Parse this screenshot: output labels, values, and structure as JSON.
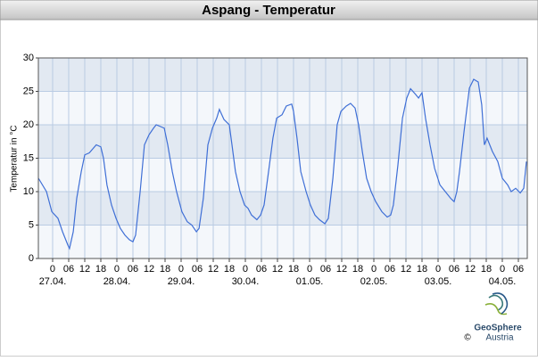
{
  "chart_data": {
    "type": "line",
    "title": "Aspang - Temperatur",
    "ylabel": "Temperatur in °C",
    "color": "#3f6fd6",
    "grid": true,
    "xlim": [
      -5.33,
      177.33
    ],
    "ylim": [
      0,
      30
    ],
    "yticks": [
      0,
      5,
      10,
      15,
      20,
      25,
      30
    ],
    "xticks": [
      {
        "value": 0,
        "label": "0"
      },
      {
        "value": 6,
        "label": "06"
      },
      {
        "value": 12,
        "label": "12"
      },
      {
        "value": 18,
        "label": "18"
      },
      {
        "value": 24,
        "label": "0"
      },
      {
        "value": 30,
        "label": "06"
      },
      {
        "value": 36,
        "label": "12"
      },
      {
        "value": 42,
        "label": "18"
      },
      {
        "value": 48,
        "label": "0"
      },
      {
        "value": 54,
        "label": "06"
      },
      {
        "value": 60,
        "label": "12"
      },
      {
        "value": 66,
        "label": "18"
      },
      {
        "value": 72,
        "label": "0"
      },
      {
        "value": 78,
        "label": "06"
      },
      {
        "value": 84,
        "label": "12"
      },
      {
        "value": 90,
        "label": "18"
      },
      {
        "value": 96,
        "label": "0"
      },
      {
        "value": 102,
        "label": "06"
      },
      {
        "value": 108,
        "label": "12"
      },
      {
        "value": 114,
        "label": "18"
      },
      {
        "value": 120,
        "label": "0"
      },
      {
        "value": 126,
        "label": "06"
      },
      {
        "value": 132,
        "label": "12"
      },
      {
        "value": 138,
        "label": "18"
      },
      {
        "value": 144,
        "label": "0"
      },
      {
        "value": 150,
        "label": "06"
      },
      {
        "value": 156,
        "label": "12"
      },
      {
        "value": 162,
        "label": "18"
      },
      {
        "value": 168,
        "label": "0"
      },
      {
        "value": 174,
        "label": "06"
      }
    ],
    "date_labels": [
      {
        "value": 0,
        "label": "27.04."
      },
      {
        "value": 24,
        "label": "28.04."
      },
      {
        "value": 48,
        "label": "29.04."
      },
      {
        "value": 72,
        "label": "30.04."
      },
      {
        "value": 96,
        "label": "01.05."
      },
      {
        "value": 120,
        "label": "02.05."
      },
      {
        "value": 144,
        "label": "03.05."
      },
      {
        "value": 168,
        "label": "04.05."
      }
    ],
    "x": [
      -5.3,
      -2.3,
      -0.3,
      2,
      3.7,
      5.7,
      6.3,
      7.7,
      9,
      10.7,
      12,
      13.7,
      16.3,
      18,
      19,
      20.3,
      22,
      23.7,
      25.3,
      27,
      28.7,
      30,
      31,
      32.7,
      34.3,
      36,
      37.7,
      38.7,
      41.7,
      43,
      44.7,
      46.3,
      48.3,
      50.3,
      52,
      53.7,
      54.7,
      56.3,
      58,
      59.7,
      61.3,
      62.3,
      64,
      66,
      67,
      68.3,
      70,
      71.7,
      73,
      74.3,
      76.3,
      77.7,
      79,
      81,
      82.3,
      83.7,
      85.7,
      87.3,
      89.3,
      90,
      91.3,
      92.7,
      94.7,
      96.3,
      98,
      99.7,
      101.7,
      103,
      104.7,
      106.3,
      107.7,
      109.7,
      111.3,
      113,
      114.3,
      115.7,
      117.3,
      119,
      120.7,
      123,
      125,
      126.3,
      127.3,
      129,
      130.7,
      132.3,
      133.7,
      135.7,
      136.7,
      138,
      139.3,
      141,
      142.7,
      144.7,
      146.7,
      148.7,
      150,
      151,
      152,
      153.7,
      155.7,
      157.3,
      159,
      160.3,
      161.3,
      162.3,
      164.3,
      166.3,
      168,
      170,
      171.3,
      173,
      174.7,
      176,
      177
    ],
    "values": [
      12,
      10,
      7,
      6,
      4,
      2,
      1.5,
      4,
      9,
      13,
      15.5,
      15.8,
      17,
      16.7,
      15,
      11,
      8,
      6,
      4.5,
      3.5,
      2.8,
      2.5,
      3.5,
      10,
      17,
      18.5,
      19.5,
      20,
      19.5,
      17,
      13,
      10,
      7,
      5.5,
      5,
      4,
      4.5,
      9,
      17,
      19.5,
      21,
      22.3,
      20.8,
      20,
      17,
      13,
      10,
      8,
      7.5,
      6.5,
      5.8,
      6.5,
      8,
      14,
      18,
      21,
      21.5,
      22.8,
      23.1,
      22,
      18,
      13,
      10,
      8,
      6.5,
      5.8,
      5.2,
      6,
      12,
      20,
      22,
      22.8,
      23.2,
      22.5,
      20,
      16,
      12,
      10,
      8.5,
      7,
      6.2,
      6.5,
      8,
      14,
      21,
      24,
      25.4,
      24.5,
      24,
      24.8,
      21,
      17,
      13.5,
      11,
      10,
      9,
      8.5,
      10,
      13,
      19,
      25.5,
      26.8,
      26.4,
      23,
      17,
      18,
      16,
      14.5,
      12,
      11,
      10,
      10.5,
      9.8,
      10.5,
      14.5
    ]
  },
  "logo": {
    "copyright": "©",
    "name": "GeoSphere",
    "country": "Austria"
  }
}
